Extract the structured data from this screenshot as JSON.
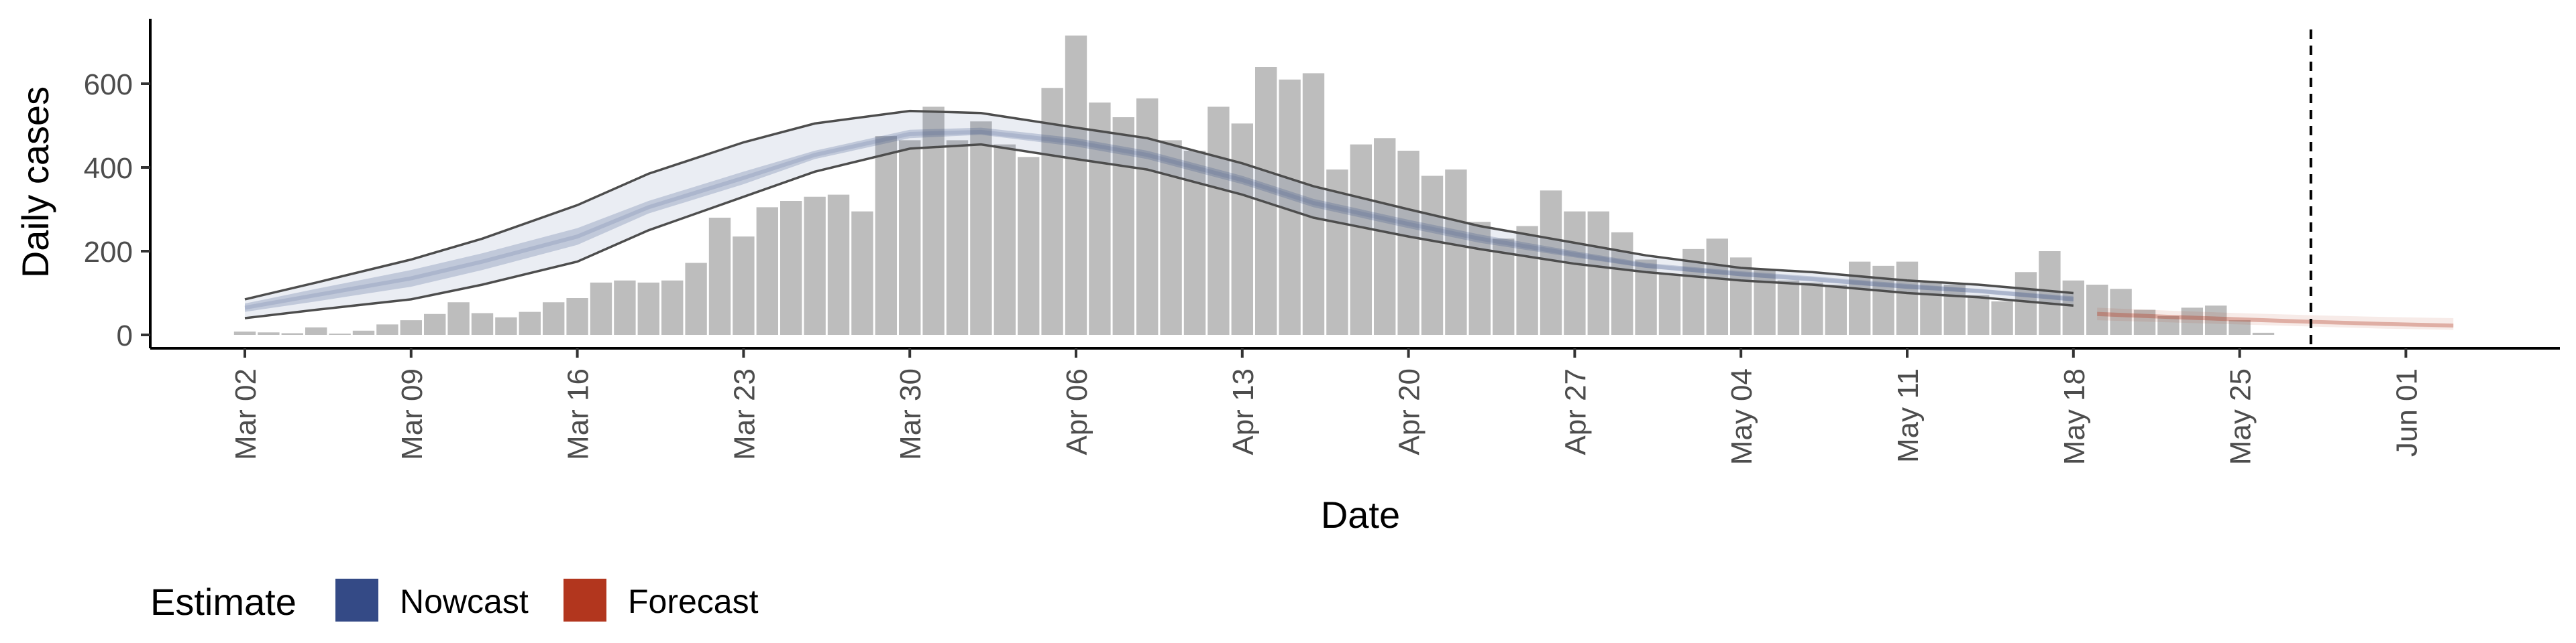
{
  "chart_data": {
    "type": "bar",
    "xlabel": "Date",
    "ylabel": "Daily cases",
    "title": "",
    "x_start": "2020-03-02",
    "x_ticks": [
      "Mar 02",
      "Mar 09",
      "Mar 16",
      "Mar 23",
      "Mar 30",
      "Apr 06",
      "Apr 13",
      "Apr 20",
      "Apr 27",
      "May 04",
      "May 11",
      "May 18",
      "May 25",
      "Jun 01"
    ],
    "y_ticks": [
      "0",
      "200",
      "400",
      "600"
    ],
    "ylim": [
      -30,
      750
    ],
    "grid": false,
    "reference_line_date": "May 28",
    "reported_cases": {
      "color": "#bdbdbd",
      "dates": [
        "Mar 02",
        "Mar 03",
        "Mar 04",
        "Mar 05",
        "Mar 06",
        "Mar 07",
        "Mar 08",
        "Mar 09",
        "Mar 10",
        "Mar 11",
        "Mar 12",
        "Mar 13",
        "Mar 14",
        "Mar 15",
        "Mar 16",
        "Mar 17",
        "Mar 18",
        "Mar 19",
        "Mar 20",
        "Mar 21",
        "Mar 22",
        "Mar 23",
        "Mar 24",
        "Mar 25",
        "Mar 26",
        "Mar 27",
        "Mar 28",
        "Mar 29",
        "Mar 30",
        "Mar 31",
        "Apr 01",
        "Apr 02",
        "Apr 03",
        "Apr 04",
        "Apr 05",
        "Apr 06",
        "Apr 07",
        "Apr 08",
        "Apr 09",
        "Apr 10",
        "Apr 11",
        "Apr 12",
        "Apr 13",
        "Apr 14",
        "Apr 15",
        "Apr 16",
        "Apr 17",
        "Apr 18",
        "Apr 19",
        "Apr 20",
        "Apr 21",
        "Apr 22",
        "Apr 23",
        "Apr 24",
        "Apr 25",
        "Apr 26",
        "Apr 27",
        "Apr 28",
        "Apr 29",
        "Apr 30",
        "May 01",
        "May 02",
        "May 03",
        "May 04",
        "May 05",
        "May 06",
        "May 07",
        "May 08",
        "May 09",
        "May 10",
        "May 11",
        "May 12",
        "May 13",
        "May 14",
        "May 15",
        "May 16",
        "May 17",
        "May 18",
        "May 19",
        "May 20",
        "May 21",
        "May 22",
        "May 23",
        "May 24",
        "May 25",
        "May 26"
      ],
      "values": [
        8,
        6,
        4,
        18,
        3,
        10,
        25,
        35,
        50,
        78,
        52,
        42,
        55,
        78,
        88,
        125,
        130,
        125,
        130,
        172,
        280,
        235,
        305,
        320,
        330,
        335,
        295,
        475,
        465,
        545,
        465,
        510,
        455,
        425,
        590,
        715,
        555,
        520,
        565,
        465,
        440,
        545,
        505,
        640,
        610,
        625,
        395,
        455,
        470,
        440,
        380,
        395,
        270,
        230,
        260,
        345,
        295,
        295,
        245,
        180,
        145,
        205,
        230,
        185,
        155,
        130,
        125,
        120,
        175,
        165,
        175,
        125,
        120,
        95,
        80,
        150,
        200,
        130,
        120,
        110,
        60,
        45,
        65,
        70,
        35,
        5
      ]
    },
    "series": [
      {
        "name": "Nowcast",
        "color": "#344a86",
        "dates": [
          "Mar 02",
          "Mar 05",
          "Mar 09",
          "Mar 12",
          "Mar 16",
          "Mar 19",
          "Mar 23",
          "Mar 26",
          "Mar 30",
          "Apr 02",
          "Apr 06",
          "Apr 09",
          "Apr 13",
          "Apr 16",
          "Apr 20",
          "Apr 23",
          "Apr 27",
          "Apr 30",
          "May 04",
          "May 07",
          "May 11",
          "May 14",
          "May 18"
        ],
        "lower_90": [
          40,
          60,
          85,
          120,
          175,
          250,
          330,
          390,
          445,
          455,
          420,
          395,
          335,
          280,
          235,
          205,
          170,
          150,
          130,
          120,
          100,
          90,
          70
        ],
        "lower_50": [
          55,
          80,
          115,
          155,
          215,
          290,
          360,
          420,
          470,
          478,
          450,
          420,
          360,
          305,
          255,
          220,
          185,
          160,
          140,
          128,
          110,
          100,
          80
        ],
        "median": [
          65,
          95,
          135,
          175,
          235,
          305,
          375,
          430,
          480,
          485,
          460,
          430,
          370,
          315,
          265,
          230,
          192,
          165,
          145,
          133,
          115,
          105,
          85
        ],
        "upper_50": [
          75,
          110,
          155,
          195,
          255,
          320,
          390,
          440,
          490,
          495,
          470,
          440,
          380,
          325,
          275,
          240,
          200,
          172,
          152,
          140,
          122,
          110,
          92
        ],
        "upper_90": [
          85,
          125,
          180,
          230,
          310,
          385,
          460,
          505,
          535,
          530,
          495,
          470,
          410,
          355,
          300,
          260,
          220,
          190,
          160,
          150,
          130,
          120,
          100
        ]
      },
      {
        "name": "Forecast",
        "color": "#b2361e",
        "dates": [
          "May 19",
          "May 22",
          "May 25",
          "May 28",
          "May 31",
          "Jun 03"
        ],
        "lower_90": [
          35,
          30,
          25,
          20,
          15,
          12
        ],
        "lower_50": [
          45,
          38,
          32,
          27,
          22,
          18
        ],
        "median": [
          50,
          43,
          37,
          31,
          26,
          22
        ],
        "upper_50": [
          55,
          48,
          42,
          36,
          31,
          27
        ],
        "upper_90": [
          65,
          58,
          52,
          47,
          43,
          40
        ]
      }
    ]
  },
  "legend": {
    "title": "Estimate",
    "items": [
      {
        "label": "Nowcast",
        "color": "#344a86"
      },
      {
        "label": "Forecast",
        "color": "#b2361e"
      }
    ]
  }
}
